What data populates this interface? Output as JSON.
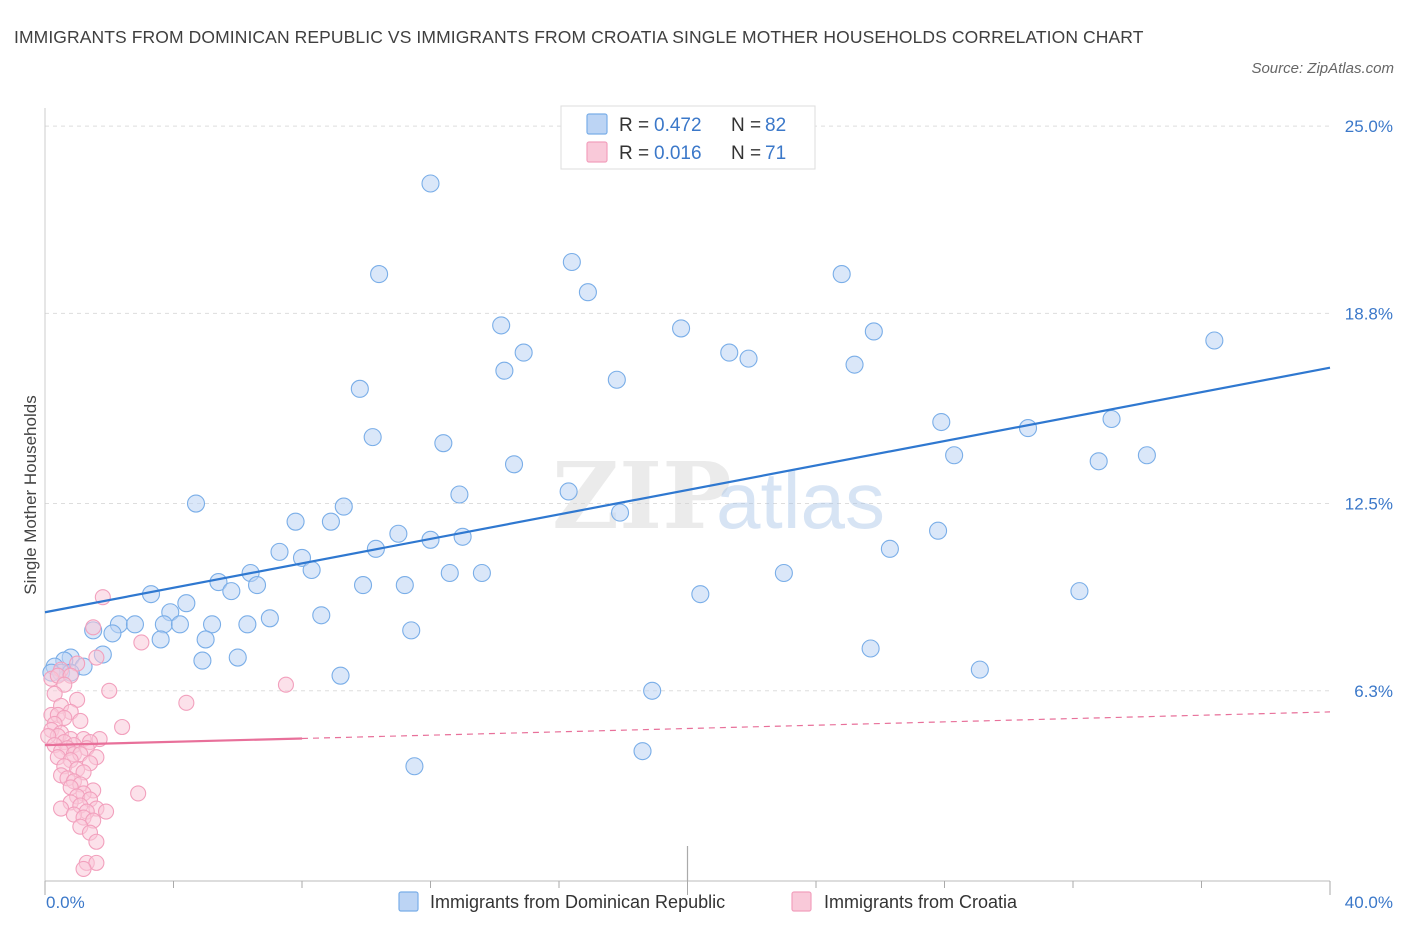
{
  "title": "IMMIGRANTS FROM DOMINICAN REPUBLIC VS IMMIGRANTS FROM CROATIA SINGLE MOTHER HOUSEHOLDS CORRELATION CHART",
  "source": "Source: ZipAtlas.com",
  "watermark": {
    "zip": "ZIP",
    "atlas": "atlas"
  },
  "colors": {
    "blue": "#7aaee8",
    "blue_line": "#2f78d0",
    "pink": "#f2a0bd",
    "pink_line": "#e8709a",
    "axis_text": "#3b78c9",
    "grid": "#dddddd"
  },
  "chart_data": {
    "type": "scatter",
    "title": "IMMIGRANTS FROM DOMINICAN REPUBLIC VS IMMIGRANTS FROM CROATIA SINGLE MOTHER HOUSEHOLDS CORRELATION CHART",
    "xlabel": "",
    "ylabel": "Single Mother Households",
    "xlim": [
      0,
      40
    ],
    "ylim": [
      0,
      25.6
    ],
    "x_tick_labels": [
      "0.0%",
      "40.0%"
    ],
    "y_ticks": [
      6.3,
      12.5,
      18.8,
      25.0
    ],
    "y_tick_labels": [
      "6.3%",
      "12.5%",
      "18.8%",
      "25.0%"
    ],
    "grid": true,
    "legend_position": "top-center",
    "legend": [
      {
        "r_label": "R =",
        "r_value": "0.472",
        "n_label": "N =",
        "n_value": "82"
      },
      {
        "r_label": "R =",
        "r_value": "0.016",
        "n_label": "N =",
        "n_value": "71"
      }
    ],
    "series": [
      {
        "name": "Immigrants from Dominican Republic",
        "color": "#7aaee8",
        "trend": {
          "x": [
            0,
            40
          ],
          "y": [
            8.9,
            17.0
          ],
          "dashed_from": null
        },
        "points": [
          [
            12.0,
            23.1
          ],
          [
            10.4,
            20.1
          ],
          [
            16.4,
            20.5
          ],
          [
            16.9,
            19.5
          ],
          [
            24.8,
            20.1
          ],
          [
            14.2,
            18.4
          ],
          [
            19.8,
            18.3
          ],
          [
            25.8,
            18.2
          ],
          [
            14.9,
            17.5
          ],
          [
            14.3,
            16.9
          ],
          [
            21.3,
            17.5
          ],
          [
            21.9,
            17.3
          ],
          [
            25.2,
            17.1
          ],
          [
            36.4,
            17.9
          ],
          [
            17.8,
            16.6
          ],
          [
            9.8,
            16.3
          ],
          [
            10.2,
            14.7
          ],
          [
            12.4,
            14.5
          ],
          [
            14.6,
            13.8
          ],
          [
            27.9,
            15.2
          ],
          [
            30.6,
            15.0
          ],
          [
            33.2,
            15.3
          ],
          [
            28.3,
            14.1
          ],
          [
            32.8,
            13.9
          ],
          [
            34.3,
            14.1
          ],
          [
            12.9,
            12.8
          ],
          [
            16.3,
            12.9
          ],
          [
            4.7,
            12.5
          ],
          [
            9.3,
            12.4
          ],
          [
            17.9,
            12.2
          ],
          [
            7.8,
            11.9
          ],
          [
            8.9,
            11.9
          ],
          [
            11.0,
            11.5
          ],
          [
            12.0,
            11.3
          ],
          [
            13.0,
            11.4
          ],
          [
            27.8,
            11.6
          ],
          [
            7.3,
            10.9
          ],
          [
            8.0,
            10.7
          ],
          [
            10.3,
            11.0
          ],
          [
            26.3,
            11.0
          ],
          [
            8.3,
            10.3
          ],
          [
            6.4,
            10.2
          ],
          [
            12.6,
            10.2
          ],
          [
            13.6,
            10.2
          ],
          [
            5.4,
            9.9
          ],
          [
            6.6,
            9.8
          ],
          [
            5.8,
            9.6
          ],
          [
            9.9,
            9.8
          ],
          [
            11.2,
            9.8
          ],
          [
            23.0,
            10.2
          ],
          [
            32.2,
            9.6
          ],
          [
            3.3,
            9.5
          ],
          [
            4.4,
            9.2
          ],
          [
            20.4,
            9.5
          ],
          [
            3.9,
            8.9
          ],
          [
            7.0,
            8.7
          ],
          [
            8.6,
            8.8
          ],
          [
            2.3,
            8.5
          ],
          [
            2.8,
            8.5
          ],
          [
            3.7,
            8.5
          ],
          [
            4.2,
            8.5
          ],
          [
            5.2,
            8.5
          ],
          [
            6.3,
            8.5
          ],
          [
            1.5,
            8.3
          ],
          [
            2.1,
            8.2
          ],
          [
            3.6,
            8.0
          ],
          [
            5.0,
            8.0
          ],
          [
            11.4,
            8.3
          ],
          [
            6.0,
            7.4
          ],
          [
            1.8,
            7.5
          ],
          [
            0.8,
            7.4
          ],
          [
            0.6,
            7.3
          ],
          [
            4.9,
            7.3
          ],
          [
            0.3,
            7.1
          ],
          [
            25.7,
            7.7
          ],
          [
            1.2,
            7.1
          ],
          [
            0.5,
            6.9
          ],
          [
            0.8,
            6.9
          ],
          [
            0.2,
            6.9
          ],
          [
            9.2,
            6.8
          ],
          [
            29.1,
            7.0
          ],
          [
            18.9,
            6.3
          ],
          [
            11.5,
            3.8
          ],
          [
            18.6,
            4.3
          ]
        ]
      },
      {
        "name": "Immigrants from Croatia",
        "color": "#f2a0bd",
        "trend": {
          "x": [
            0,
            40
          ],
          "y": [
            4.5,
            5.6
          ],
          "dashed_from": 8.0
        },
        "points": [
          [
            1.8,
            9.4
          ],
          [
            1.5,
            8.4
          ],
          [
            3.0,
            7.9
          ],
          [
            1.6,
            7.4
          ],
          [
            1.0,
            7.2
          ],
          [
            0.5,
            7.0
          ],
          [
            0.2,
            6.7
          ],
          [
            0.4,
            6.8
          ],
          [
            0.8,
            6.8
          ],
          [
            0.6,
            6.5
          ],
          [
            7.5,
            6.5
          ],
          [
            2.0,
            6.3
          ],
          [
            0.3,
            6.2
          ],
          [
            1.0,
            6.0
          ],
          [
            4.4,
            5.9
          ],
          [
            0.5,
            5.8
          ],
          [
            0.8,
            5.6
          ],
          [
            0.2,
            5.5
          ],
          [
            0.4,
            5.5
          ],
          [
            0.6,
            5.4
          ],
          [
            1.1,
            5.3
          ],
          [
            0.3,
            5.2
          ],
          [
            2.4,
            5.1
          ],
          [
            0.2,
            5.0
          ],
          [
            0.5,
            4.9
          ],
          [
            0.4,
            4.8
          ],
          [
            0.1,
            4.8
          ],
          [
            0.8,
            4.7
          ],
          [
            1.2,
            4.7
          ],
          [
            1.7,
            4.7
          ],
          [
            0.6,
            4.6
          ],
          [
            1.4,
            4.6
          ],
          [
            0.9,
            4.5
          ],
          [
            0.3,
            4.5
          ],
          [
            0.7,
            4.4
          ],
          [
            1.3,
            4.4
          ],
          [
            0.5,
            4.3
          ],
          [
            0.9,
            4.2
          ],
          [
            1.1,
            4.2
          ],
          [
            1.6,
            4.1
          ],
          [
            0.4,
            4.1
          ],
          [
            0.8,
            4.0
          ],
          [
            1.4,
            3.9
          ],
          [
            0.6,
            3.8
          ],
          [
            1.0,
            3.7
          ],
          [
            1.2,
            3.6
          ],
          [
            0.5,
            3.5
          ],
          [
            0.7,
            3.4
          ],
          [
            0.9,
            3.3
          ],
          [
            1.1,
            3.2
          ],
          [
            0.8,
            3.1
          ],
          [
            1.5,
            3.0
          ],
          [
            2.9,
            2.9
          ],
          [
            1.2,
            2.9
          ],
          [
            1.0,
            2.8
          ],
          [
            1.4,
            2.7
          ],
          [
            0.8,
            2.6
          ],
          [
            1.1,
            2.5
          ],
          [
            1.6,
            2.4
          ],
          [
            0.5,
            2.4
          ],
          [
            1.3,
            2.3
          ],
          [
            1.9,
            2.3
          ],
          [
            0.9,
            2.2
          ],
          [
            1.2,
            2.1
          ],
          [
            1.5,
            2.0
          ],
          [
            1.1,
            1.8
          ],
          [
            1.4,
            1.6
          ],
          [
            1.6,
            1.3
          ],
          [
            1.3,
            0.6
          ],
          [
            1.6,
            0.6
          ],
          [
            1.2,
            0.4
          ]
        ]
      }
    ]
  }
}
